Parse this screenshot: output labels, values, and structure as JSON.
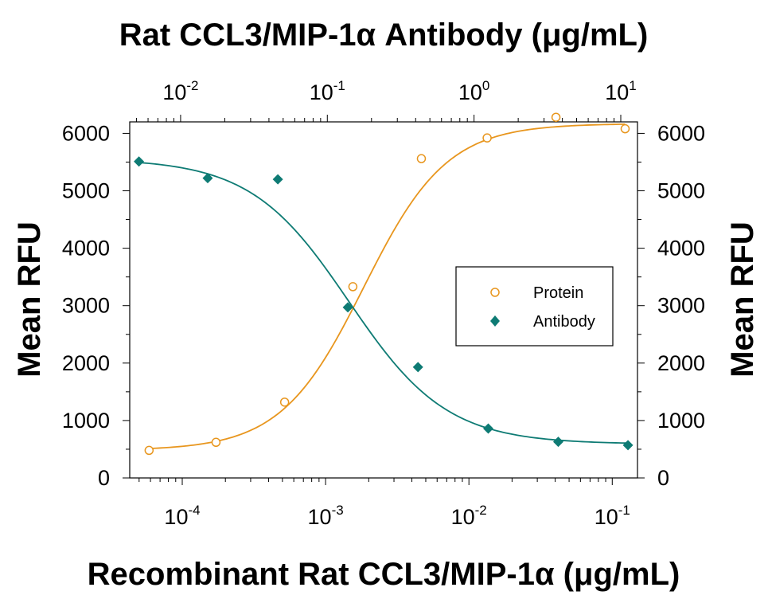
{
  "chart_data": {
    "type": "scatter",
    "top_axis": {
      "label": "Rat CCL3/MIP-1α Antibody (μg/mL)",
      "scale": "log",
      "range": [
        0.0045,
        13
      ],
      "ticks": [
        {
          "value": 0.01,
          "base": "10",
          "exp": "-2"
        },
        {
          "value": 0.1,
          "base": "10",
          "exp": "-1"
        },
        {
          "value": 1,
          "base": "10",
          "exp": "0"
        },
        {
          "value": 10,
          "base": "10",
          "exp": "1"
        }
      ]
    },
    "bottom_axis": {
      "label": "Recombinant Rat CCL3/MIP-1α (μg/mL)",
      "scale": "log",
      "range": [
        4.3e-05,
        0.15
      ],
      "ticks": [
        {
          "value": 0.0001,
          "base": "10",
          "exp": "-4"
        },
        {
          "value": 0.001,
          "base": "10",
          "exp": "-3"
        },
        {
          "value": 0.01,
          "base": "10",
          "exp": "-2"
        },
        {
          "value": 0.1,
          "base": "10",
          "exp": "-1"
        }
      ]
    },
    "left_axis": {
      "label": "Mean RFU",
      "range": [
        0,
        6200
      ],
      "ticks": [
        "0",
        "1000",
        "2000",
        "3000",
        "4000",
        "5000",
        "6000"
      ]
    },
    "right_axis": {
      "label": "Mean RFU",
      "range": [
        0,
        6200
      ],
      "ticks": [
        "0",
        "1000",
        "2000",
        "3000",
        "4000",
        "5000",
        "6000"
      ]
    },
    "legend": {
      "placement": "right-center",
      "entries": [
        "Protein",
        "Antibody"
      ]
    },
    "series": [
      {
        "name": "Protein",
        "axis": "bottom",
        "color": "#E8961E",
        "marker": "open-circle",
        "x": [
          5.87e-05,
          0.000172,
          0.000518,
          0.00155,
          0.00466,
          0.0134,
          0.0405,
          0.123
        ],
        "y": [
          480,
          620,
          1320,
          3330,
          5560,
          5920,
          6280,
          6080
        ],
        "fit": {
          "bottom": 480,
          "top": 6170,
          "ec50": 0.00185,
          "hill": 1.5
        }
      },
      {
        "name": "Antibody",
        "axis": "top",
        "color": "#0E7B74",
        "marker": "filled-diamond",
        "x": [
          0.0052,
          0.0153,
          0.046,
          0.138,
          0.415,
          1.25,
          3.75,
          11.2
        ],
        "y": [
          5510,
          5220,
          5200,
          2970,
          1930,
          860,
          630,
          570
        ],
        "fit": {
          "bottom": 590,
          "top": 5560,
          "ec50": 0.14,
          "hill": -1.3
        }
      }
    ]
  }
}
